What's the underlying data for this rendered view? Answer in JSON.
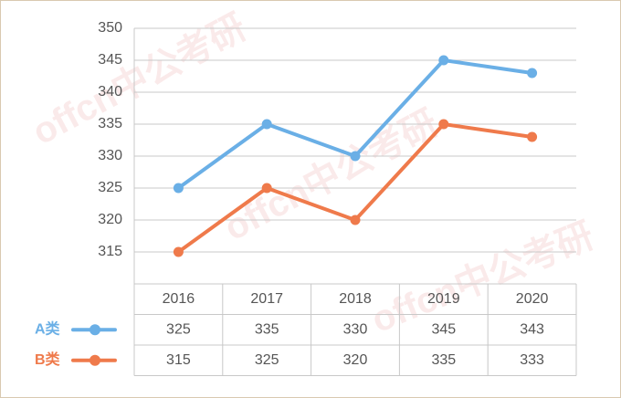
{
  "chart_data": {
    "type": "line",
    "categories": [
      "2016",
      "2017",
      "2018",
      "2019",
      "2020"
    ],
    "series": [
      {
        "name": "A类",
        "color": "#6aafe6",
        "values": [
          325,
          335,
          330,
          345,
          343
        ]
      },
      {
        "name": "B类",
        "color": "#ef7a4b",
        "values": [
          315,
          325,
          320,
          335,
          333
        ]
      }
    ],
    "ylim": [
      310,
      350
    ],
    "yticks": [
      315,
      320,
      325,
      330,
      335,
      340,
      345,
      350
    ],
    "grid": true,
    "watermark": "offcn中公考研"
  }
}
